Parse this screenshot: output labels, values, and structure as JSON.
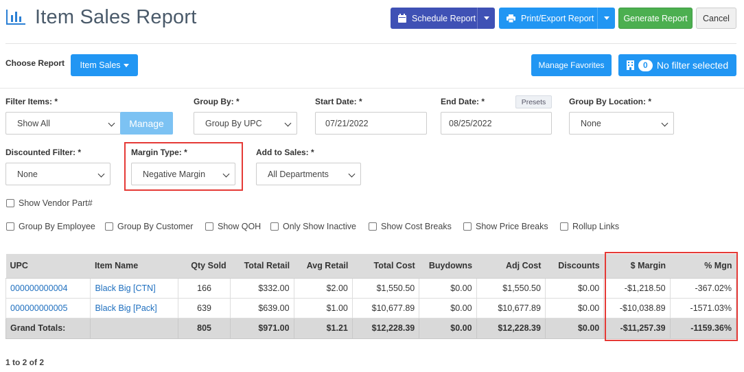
{
  "header": {
    "title": "Item Sales Report",
    "schedule_label": "Schedule Report",
    "print_label": "Print/Export Report",
    "generate_label": "Generate Report",
    "cancel_label": "Cancel"
  },
  "report_bar": {
    "choose_label": "Choose Report",
    "report_button": "Item Sales",
    "favorites_label": "Manage Favorites",
    "filter_count": "0",
    "filter_label": "No filter selected"
  },
  "filters": {
    "filter_items": {
      "label": "Filter Items: *",
      "value": "Show All",
      "manage_label": "Manage"
    },
    "group_by": {
      "label": "Group By: *",
      "value": "Group By UPC"
    },
    "start_date": {
      "label": "Start Date: *",
      "value": "07/21/2022"
    },
    "end_date": {
      "label": "End Date: *",
      "value": "08/25/2022",
      "presets_label": "Presets"
    },
    "group_by_location": {
      "label": "Group By Location: *",
      "value": "None"
    },
    "discounted": {
      "label": "Discounted Filter: *",
      "value": "None"
    },
    "margin_type": {
      "label": "Margin Type: *",
      "value": "Negative Margin"
    },
    "add_to_sales": {
      "label": "Add to Sales: *",
      "value": "All Departments"
    }
  },
  "options": {
    "vendor_part": "Show Vendor Part#",
    "group_employee": "Group By Employee",
    "group_customer": "Group By Customer",
    "show_qoh": "Show QOH",
    "only_inactive": "Only Show Inactive",
    "cost_breaks": "Show Cost Breaks",
    "price_breaks": "Show Price Breaks",
    "rollup_links": "Rollup Links"
  },
  "table": {
    "headers": [
      "UPC",
      "Item Name",
      "Qty Sold",
      "Total Retail",
      "Avg Retail",
      "Total Cost",
      "Buydowns",
      "Adj Cost",
      "Discounts",
      "$ Margin",
      "% Mgn"
    ],
    "rows": [
      [
        "000000000004",
        "Black Big [CTN]",
        "166",
        "$332.00",
        "$2.00",
        "$1,550.50",
        "$0.00",
        "$1,550.50",
        "$0.00",
        "-$1,218.50",
        "-367.02%"
      ],
      [
        "000000000005",
        "Black Big [Pack]",
        "639",
        "$639.00",
        "$1.00",
        "$10,677.89",
        "$0.00",
        "$10,677.89",
        "$0.00",
        "-$10,038.89",
        "-1571.03%"
      ]
    ],
    "totals": [
      "Grand Totals:",
      "",
      "805",
      "$971.00",
      "$1.21",
      "$12,228.39",
      "$0.00",
      "$12,228.39",
      "$0.00",
      "-$11,257.39",
      "-1159.36%"
    ]
  },
  "pager": "1 to 2 of 2",
  "colors": {
    "primary": "#2196f3",
    "schedule": "#3f51b5",
    "generate": "#4caf50",
    "highlight": "#e53935",
    "link": "#1e6fbf"
  }
}
